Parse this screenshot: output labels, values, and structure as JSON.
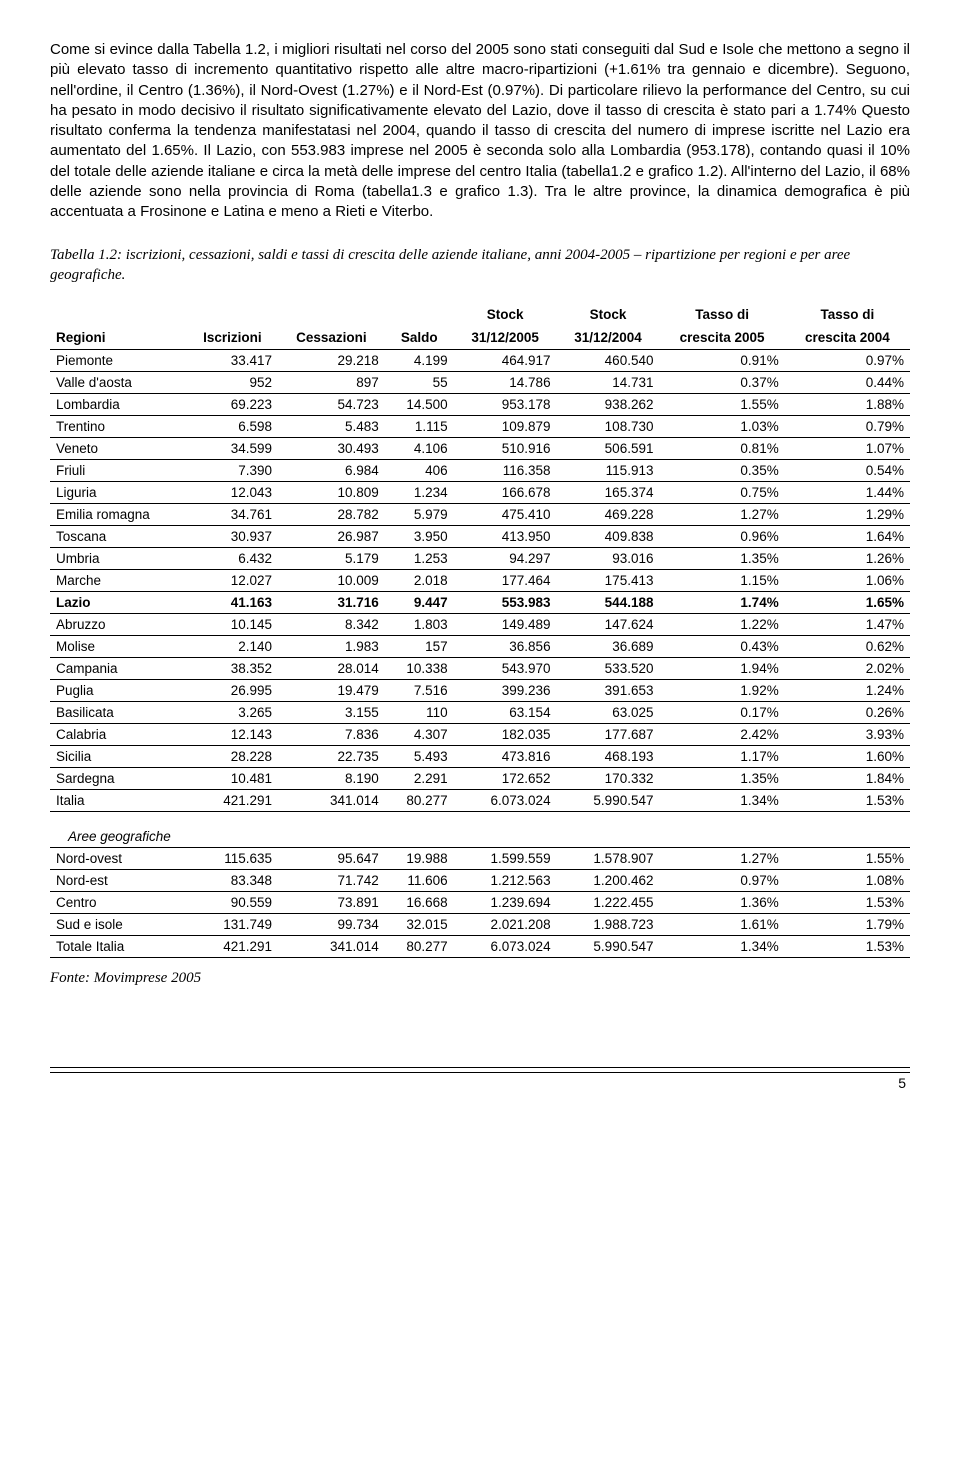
{
  "paragraph": "Come si evince dalla Tabella 1.2, i migliori risultati nel corso del 2005 sono stati conseguiti dal Sud e Isole che mettono a segno il più elevato tasso di incremento quantitativo rispetto alle altre macro-ripartizioni (+1.61% tra gennaio e dicembre). Seguono, nell'ordine, il Centro (1.36%), il Nord-Ovest (1.27%) e il Nord-Est (0.97%).\nDi particolare rilievo la performance del Centro, su cui ha pesato in modo decisivo il risultato significativamente elevato del Lazio, dove il tasso di crescita è stato pari a 1.74%\nQuesto risultato conferma la tendenza manifestatasi nel 2004, quando il tasso di crescita del numero di imprese iscritte nel Lazio era aumentato del 1.65%.\nIl Lazio, con 553.983 imprese nel 2005 è seconda solo alla Lombardia (953.178), contando quasi il 10% del totale delle aziende italiane e circa la metà delle imprese del centro Italia (tabella1.2 e grafico 1.2). All'interno del Lazio, il 68% delle aziende sono nella provincia di Roma (tabella1.3 e grafico 1.3).  Tra le altre province, la dinamica demografica è più accentuata a Frosinone e Latina e meno a Rieti e Viterbo.",
  "caption": "Tabella 1.2: iscrizioni, cessazioni, saldi e tassi di crescita delle aziende italiane, anni 2004-2005 – ripartizione per regioni e per aree geografiche.",
  "table": {
    "columns": [
      {
        "key": "region",
        "label": "Regioni",
        "align": "left"
      },
      {
        "key": "isc",
        "label": "Iscrizioni",
        "align": "right"
      },
      {
        "key": "cess",
        "label": "Cessazioni",
        "align": "right"
      },
      {
        "key": "saldo",
        "label": "Saldo",
        "align": "right"
      },
      {
        "key": "s05",
        "label": "Stock 31/12/2005",
        "align": "right"
      },
      {
        "key": "s04",
        "label": "Stock 31/12/2004",
        "align": "right"
      },
      {
        "key": "t05",
        "label": "Tasso di crescita 2005",
        "align": "right"
      },
      {
        "key": "t04",
        "label": "Tasso di crescita 2004",
        "align": "right"
      }
    ],
    "header_labels": {
      "regioni": "Regioni",
      "iscrizioni": "Iscrizioni",
      "cessazioni": "Cessazioni",
      "saldo": "Saldo",
      "stock": "Stock",
      "d05": "31/12/2005",
      "d04": "31/12/2004",
      "tasso": "Tasso di",
      "cr05": "crescita 2005",
      "cr04": "crescita 2004"
    },
    "rows": [
      {
        "r": "Piemonte",
        "i": "33.417",
        "c": "29.218",
        "s": "4.199",
        "s05": "464.917",
        "s04": "460.540",
        "t05": "0.91%",
        "t04": "0.97%"
      },
      {
        "r": "Valle d'aosta",
        "i": "952",
        "c": "897",
        "s": "55",
        "s05": "14.786",
        "s04": "14.731",
        "t05": "0.37%",
        "t04": "0.44%"
      },
      {
        "r": "Lombardia",
        "i": "69.223",
        "c": "54.723",
        "s": "14.500",
        "s05": "953.178",
        "s04": "938.262",
        "t05": "1.55%",
        "t04": "1.88%"
      },
      {
        "r": "Trentino",
        "i": "6.598",
        "c": "5.483",
        "s": "1.115",
        "s05": "109.879",
        "s04": "108.730",
        "t05": "1.03%",
        "t04": "0.79%"
      },
      {
        "r": "Veneto",
        "i": "34.599",
        "c": "30.493",
        "s": "4.106",
        "s05": "510.916",
        "s04": "506.591",
        "t05": "0.81%",
        "t04": "1.07%"
      },
      {
        "r": "Friuli",
        "i": "7.390",
        "c": "6.984",
        "s": "406",
        "s05": "116.358",
        "s04": "115.913",
        "t05": "0.35%",
        "t04": "0.54%"
      },
      {
        "r": "Liguria",
        "i": "12.043",
        "c": "10.809",
        "s": "1.234",
        "s05": "166.678",
        "s04": "165.374",
        "t05": "0.75%",
        "t04": "1.44%"
      },
      {
        "r": "Emilia romagna",
        "i": "34.761",
        "c": "28.782",
        "s": "5.979",
        "s05": "475.410",
        "s04": "469.228",
        "t05": "1.27%",
        "t04": "1.29%"
      },
      {
        "r": "Toscana",
        "i": "30.937",
        "c": "26.987",
        "s": "3.950",
        "s05": "413.950",
        "s04": "409.838",
        "t05": "0.96%",
        "t04": "1.64%"
      },
      {
        "r": "Umbria",
        "i": "6.432",
        "c": "5.179",
        "s": "1.253",
        "s05": "94.297",
        "s04": "93.016",
        "t05": "1.35%",
        "t04": "1.26%"
      },
      {
        "r": "Marche",
        "i": "12.027",
        "c": "10.009",
        "s": "2.018",
        "s05": "177.464",
        "s04": "175.413",
        "t05": "1.15%",
        "t04": "1.06%"
      },
      {
        "r": "Lazio",
        "i": "41.163",
        "c": "31.716",
        "s": "9.447",
        "s05": "553.983",
        "s04": "544.188",
        "t05": "1.74%",
        "t04": "1.65%",
        "bold": true
      },
      {
        "r": "Abruzzo",
        "i": "10.145",
        "c": "8.342",
        "s": "1.803",
        "s05": "149.489",
        "s04": "147.624",
        "t05": "1.22%",
        "t04": "1.47%"
      },
      {
        "r": "Molise",
        "i": "2.140",
        "c": "1.983",
        "s": "157",
        "s05": "36.856",
        "s04": "36.689",
        "t05": "0.43%",
        "t04": "0.62%"
      },
      {
        "r": "Campania",
        "i": "38.352",
        "c": "28.014",
        "s": "10.338",
        "s05": "543.970",
        "s04": "533.520",
        "t05": "1.94%",
        "t04": "2.02%"
      },
      {
        "r": "Puglia",
        "i": "26.995",
        "c": "19.479",
        "s": "7.516",
        "s05": "399.236",
        "s04": "391.653",
        "t05": "1.92%",
        "t04": "1.24%"
      },
      {
        "r": "Basilicata",
        "i": "3.265",
        "c": "3.155",
        "s": "110",
        "s05": "63.154",
        "s04": "63.025",
        "t05": "0.17%",
        "t04": "0.26%"
      },
      {
        "r": "Calabria",
        "i": "12.143",
        "c": "7.836",
        "s": "4.307",
        "s05": "182.035",
        "s04": "177.687",
        "t05": "2.42%",
        "t04": "3.93%"
      },
      {
        "r": "Sicilia",
        "i": "28.228",
        "c": "22.735",
        "s": "5.493",
        "s05": "473.816",
        "s04": "468.193",
        "t05": "1.17%",
        "t04": "1.60%"
      },
      {
        "r": "Sardegna",
        "i": "10.481",
        "c": "8.190",
        "s": "2.291",
        "s05": "172.652",
        "s04": "170.332",
        "t05": "1.35%",
        "t04": "1.84%"
      },
      {
        "r": "Italia",
        "i": "421.291",
        "c": "341.014",
        "s": "80.277",
        "s05": "6.073.024",
        "s04": "5.990.547",
        "t05": "1.34%",
        "t04": "1.53%"
      }
    ],
    "section_label": "Aree geografiche",
    "rows2": [
      {
        "r": "Nord-ovest",
        "i": "115.635",
        "c": "95.647",
        "s": "19.988",
        "s05": "1.599.559",
        "s04": "1.578.907",
        "t05": "1.27%",
        "t04": "1.55%"
      },
      {
        "r": "Nord-est",
        "i": "83.348",
        "c": "71.742",
        "s": "11.606",
        "s05": "1.212.563",
        "s04": "1.200.462",
        "t05": "0.97%",
        "t04": "1.08%"
      },
      {
        "r": "Centro",
        "i": "90.559",
        "c": "73.891",
        "s": "16.668",
        "s05": "1.239.694",
        "s04": "1.222.455",
        "t05": "1.36%",
        "t04": "1.53%"
      },
      {
        "r": "Sud e isole",
        "i": "131.749",
        "c": "99.734",
        "s": "32.015",
        "s05": "2.021.208",
        "s04": "1.988.723",
        "t05": "1.61%",
        "t04": "1.79%"
      },
      {
        "r": "Totale Italia",
        "i": "421.291",
        "c": "341.014",
        "s": "80.277",
        "s05": "6.073.024",
        "s04": "5.990.547",
        "t05": "1.34%",
        "t04": "1.53%"
      }
    ]
  },
  "source": "Fonte: Movimprese 2005",
  "page_number": "5",
  "colors": {
    "text": "#000000",
    "background": "#ffffff",
    "border": "#000000"
  }
}
